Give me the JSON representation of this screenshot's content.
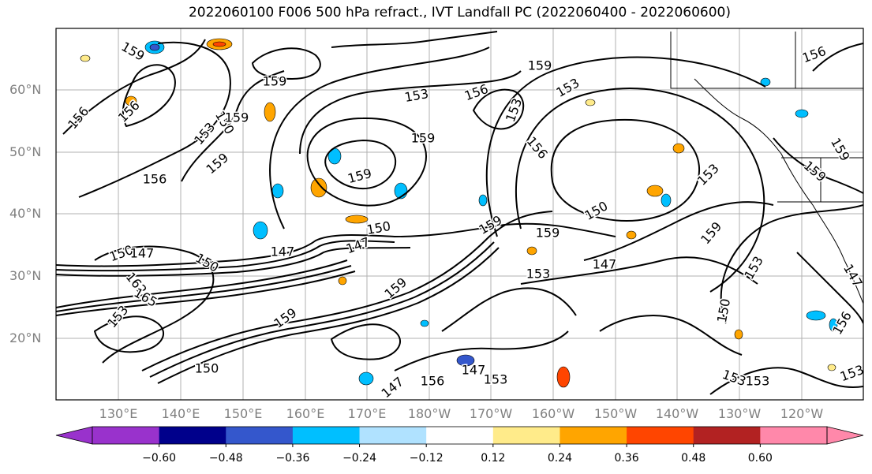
{
  "title": "2022060100 F006 500 hPa refract., IVT Landfall PC (2022060400 - 2022060600)",
  "lat_labels": [
    "60°N",
    "50°N",
    "40°N",
    "30°N",
    "20°N"
  ],
  "lon_labels": [
    "130°E",
    "140°E",
    "150°E",
    "160°E",
    "170°E",
    "180°W",
    "170°W",
    "160°W",
    "150°W",
    "140°W",
    "130°W",
    "120°W"
  ],
  "colorbar": {
    "colors": [
      "#9932cc",
      "#00008b",
      "#3457cc",
      "#00bfff",
      "#b0e2ff",
      "#ffffff",
      "#ffeb8a",
      "#ffa500",
      "#ff4500",
      "#b22222",
      "#ff88aa"
    ],
    "tick_labels": [
      "−0.60",
      "−0.48",
      "−0.36",
      "−0.24",
      "−0.12",
      "0.12",
      "0.24",
      "0.36",
      "0.48",
      "0.60"
    ]
  },
  "contour_labels": [
    "156",
    "159",
    "159",
    "153",
    "156",
    "156",
    "159",
    "153",
    "153",
    "156",
    "159",
    "159",
    "156",
    "159",
    "159",
    "153",
    "150",
    "147",
    "147",
    "150",
    "159",
    "159",
    "153",
    "150",
    "147",
    "153",
    "159",
    "153",
    "150",
    "150",
    "147",
    "147",
    "153",
    "147",
    "156",
    "153",
    "150",
    "162",
    "165",
    "150",
    "147",
    "153",
    "159",
    "159",
    "156",
    "153",
    "153",
    "159",
    "159",
    "156"
  ],
  "colors": {
    "grid": "#b0b0b0",
    "coast": "#000000",
    "axis_label": "#808080"
  }
}
